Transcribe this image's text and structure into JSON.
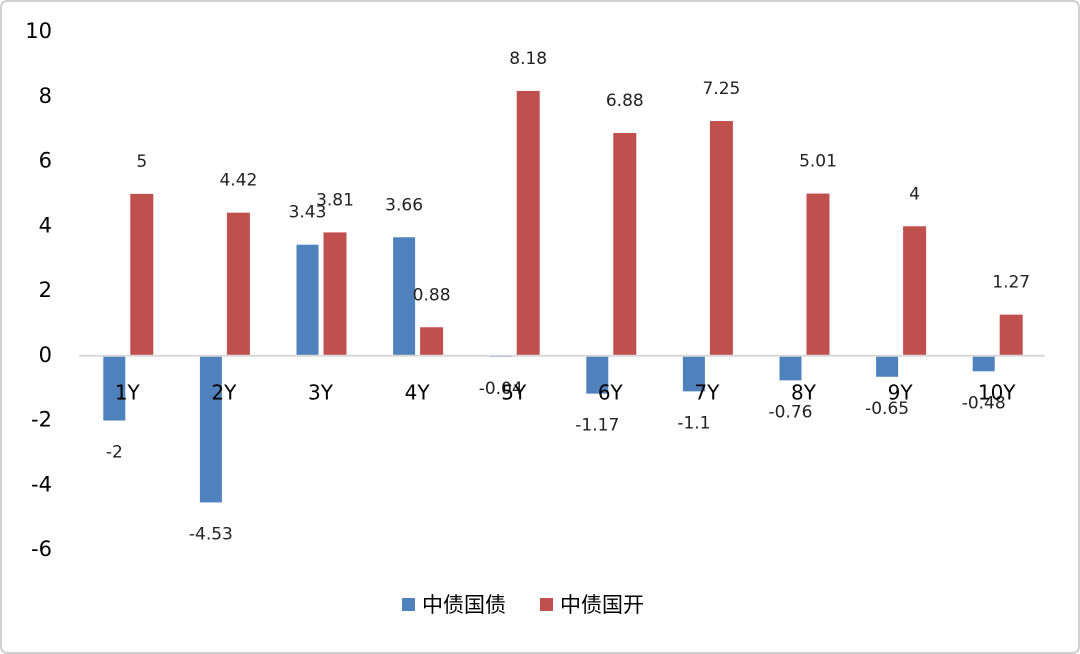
{
  "chart_data": {
    "type": "bar",
    "categories": [
      "1Y",
      "2Y",
      "3Y",
      "4Y",
      "5Y",
      "6Y",
      "7Y",
      "8Y",
      "9Y",
      "10Y"
    ],
    "series": [
      {
        "name": "中债国债",
        "color": "#4f81bd",
        "values": [
          -2,
          -4.53,
          3.43,
          3.66,
          -0.04,
          -1.17,
          -1.1,
          -0.76,
          -0.65,
          -0.48
        ]
      },
      {
        "name": "中债国开",
        "color": "#c0504d",
        "values": [
          5,
          4.42,
          3.81,
          0.88,
          8.18,
          6.88,
          7.25,
          5.01,
          4,
          1.27
        ]
      }
    ],
    "ylim": [
      -6,
      10
    ],
    "yticks": [
      -6,
      -4,
      -2,
      0,
      2,
      4,
      6,
      8,
      10
    ],
    "grid": false,
    "legend": "bottom"
  }
}
